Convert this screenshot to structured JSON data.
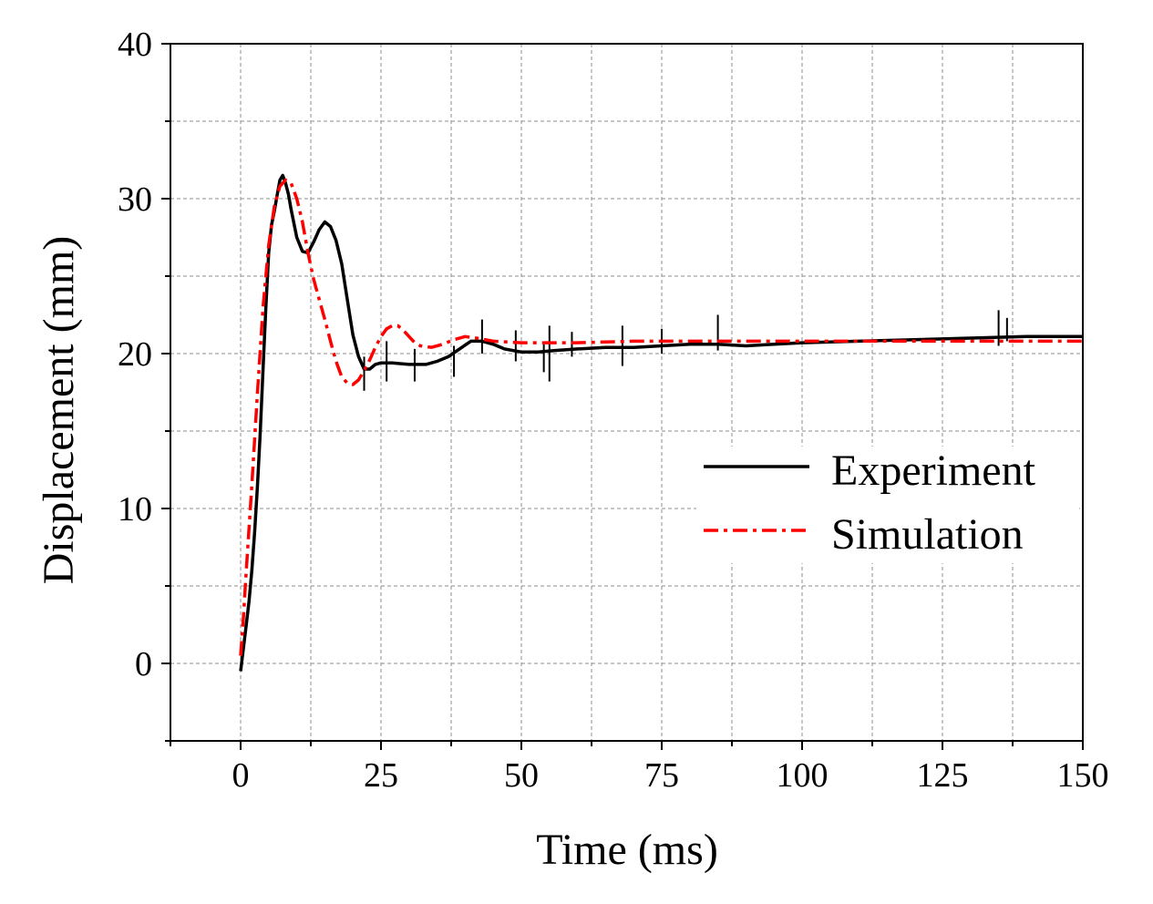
{
  "chart_data": {
    "type": "line",
    "title": "",
    "xlabel": "Time (ms)",
    "ylabel": "Displacement (mm)",
    "xlim": [
      -12.5,
      150
    ],
    "ylim": [
      -5,
      40
    ],
    "xticks": [
      0,
      25,
      50,
      75,
      100,
      125,
      150
    ],
    "xtick_labels": [
      "0",
      "25",
      "50",
      "75",
      "100",
      "125",
      "150"
    ],
    "yticks": [
      0,
      10,
      20,
      30,
      40
    ],
    "ytick_labels": [
      "0",
      "10",
      "20",
      "30",
      "40"
    ],
    "grid": true,
    "legend_position": "center-right",
    "series": [
      {
        "name": "Experiment",
        "color": "#000000",
        "style": "solid",
        "x": [
          0,
          0.5,
          1,
          1.5,
          2,
          2.5,
          3,
          3.5,
          4,
          4.5,
          5,
          5.5,
          6,
          6.5,
          7,
          7.5,
          8,
          8.5,
          9,
          10,
          11,
          12,
          13,
          14,
          15,
          16,
          17,
          18,
          19,
          20,
          21,
          22,
          23,
          24,
          25,
          27,
          30,
          33,
          35,
          37,
          39,
          41,
          43,
          45,
          47,
          50,
          53,
          56,
          60,
          65,
          70,
          75,
          80,
          85,
          90,
          95,
          100,
          110,
          120,
          130,
          140,
          150
        ],
        "y": [
          -0.5,
          1.0,
          2.5,
          4.0,
          6.0,
          8.5,
          11.5,
          15.0,
          19.0,
          23.0,
          26.5,
          28.3,
          29.2,
          30.2,
          31.2,
          31.5,
          31.0,
          30.3,
          29.3,
          27.5,
          26.6,
          26.5,
          27.2,
          28.0,
          28.5,
          28.2,
          27.3,
          25.8,
          23.5,
          21.2,
          19.8,
          19.0,
          19.0,
          19.3,
          19.4,
          19.4,
          19.3,
          19.3,
          19.5,
          19.8,
          20.3,
          20.8,
          20.8,
          20.6,
          20.3,
          20.1,
          20.1,
          20.2,
          20.3,
          20.4,
          20.4,
          20.5,
          20.6,
          20.6,
          20.5,
          20.6,
          20.7,
          20.8,
          20.9,
          21.0,
          21.1,
          21.1
        ],
        "spikes": [
          {
            "x": 22,
            "low": 17.6,
            "high": 19.8
          },
          {
            "x": 26,
            "low": 18.2,
            "high": 20.8
          },
          {
            "x": 31,
            "low": 18.2,
            "high": 20.3
          },
          {
            "x": 38,
            "low": 18.5,
            "high": 20.5
          },
          {
            "x": 43,
            "low": 20.0,
            "high": 22.2
          },
          {
            "x": 49,
            "low": 19.5,
            "high": 21.5
          },
          {
            "x": 54,
            "low": 18.8,
            "high": 20.6
          },
          {
            "x": 55,
            "low": 18.2,
            "high": 21.8
          },
          {
            "x": 59,
            "low": 19.8,
            "high": 21.4
          },
          {
            "x": 68,
            "low": 19.2,
            "high": 21.8
          },
          {
            "x": 75,
            "low": 20.0,
            "high": 21.6
          },
          {
            "x": 85,
            "low": 20.2,
            "high": 22.5
          },
          {
            "x": 135,
            "low": 20.5,
            "high": 22.8
          },
          {
            "x": 136.5,
            "low": 20.8,
            "high": 22.3
          }
        ]
      },
      {
        "name": "Simulation",
        "color": "#ff0000",
        "style": "dash-dot",
        "x": [
          0,
          0.5,
          1,
          2,
          3,
          4,
          5,
          6,
          7,
          8,
          9,
          10,
          11,
          12,
          13,
          14,
          15,
          16,
          17,
          18,
          19,
          20,
          21,
          22,
          23,
          24,
          25,
          26,
          27,
          28,
          29,
          30,
          31,
          32,
          34,
          36,
          38,
          40,
          42,
          45,
          50,
          55,
          60,
          70,
          80,
          90,
          100,
          110,
          120,
          130,
          140,
          150
        ],
        "y": [
          0.5,
          3.0,
          6.0,
          11.5,
          17.5,
          23.0,
          27.0,
          29.5,
          30.8,
          31.2,
          31.0,
          30.0,
          28.5,
          26.5,
          24.8,
          23.5,
          22.2,
          20.8,
          19.5,
          18.5,
          18.1,
          18.0,
          18.3,
          18.9,
          19.6,
          20.4,
          21.1,
          21.6,
          21.8,
          21.8,
          21.5,
          21.1,
          20.7,
          20.5,
          20.4,
          20.6,
          20.9,
          21.1,
          21.0,
          20.8,
          20.7,
          20.7,
          20.7,
          20.8,
          20.8,
          20.8,
          20.8,
          20.8,
          20.8,
          20.8,
          20.8,
          20.8
        ]
      }
    ]
  }
}
